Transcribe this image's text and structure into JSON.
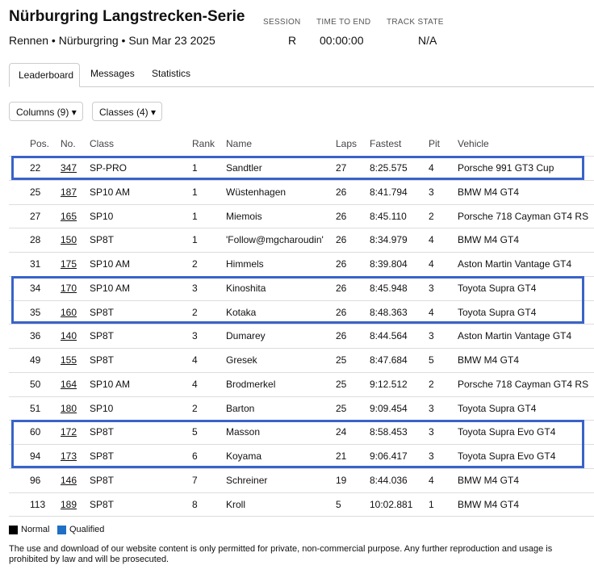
{
  "header": {
    "title": "Nürburgring Langstrecken-Serie",
    "subtitle": "Rennen • Nürburgring • Sun Mar 23 2025",
    "stats": [
      {
        "label": "SESSION",
        "value": "R"
      },
      {
        "label": "TIME TO END",
        "value": "00:00:00"
      },
      {
        "label": "TRACK STATE",
        "value": "N/A"
      }
    ]
  },
  "tabs": [
    "Leaderboard",
    "Messages",
    "Statistics"
  ],
  "filters": [
    "Columns (9)",
    "Classes (4)"
  ],
  "table": {
    "columns": [
      "Pos.",
      "No.",
      "Class",
      "Rank",
      "Name",
      "Laps",
      "Fastest",
      "Pit",
      "Vehicle"
    ],
    "rows": [
      [
        "22",
        "347",
        "SP-PRO",
        "1",
        "Sandtler",
        "27",
        "8:25.575",
        "4",
        "Porsche 991 GT3 Cup"
      ],
      [
        "25",
        "187",
        "SP10 AM",
        "1",
        "Wüstenhagen",
        "26",
        "8:41.794",
        "3",
        "BMW M4 GT4"
      ],
      [
        "27",
        "165",
        "SP10",
        "1",
        "Miemois",
        "26",
        "8:45.110",
        "2",
        "Porsche 718 Cayman GT4 RS"
      ],
      [
        "28",
        "150",
        "SP8T",
        "1",
        "'Follow@mgcharoudin'",
        "26",
        "8:34.979",
        "4",
        "BMW M4 GT4"
      ],
      [
        "31",
        "175",
        "SP10 AM",
        "2",
        "Himmels",
        "26",
        "8:39.804",
        "4",
        "Aston Martin Vantage GT4"
      ],
      [
        "34",
        "170",
        "SP10 AM",
        "3",
        "Kinoshita",
        "26",
        "8:45.948",
        "3",
        "Toyota Supra GT4"
      ],
      [
        "35",
        "160",
        "SP8T",
        "2",
        "Kotaka",
        "26",
        "8:48.363",
        "4",
        "Toyota Supra GT4"
      ],
      [
        "36",
        "140",
        "SP8T",
        "3",
        "Dumarey",
        "26",
        "8:44.564",
        "3",
        "Aston Martin Vantage GT4"
      ],
      [
        "49",
        "155",
        "SP8T",
        "4",
        "Gresek",
        "25",
        "8:47.684",
        "5",
        "BMW M4 GT4"
      ],
      [
        "50",
        "164",
        "SP10 AM",
        "4",
        "Brodmerkel",
        "25",
        "9:12.512",
        "2",
        "Porsche 718 Cayman GT4 RS"
      ],
      [
        "51",
        "180",
        "SP10",
        "2",
        "Barton",
        "25",
        "9:09.454",
        "3",
        "Toyota Supra GT4"
      ],
      [
        "60",
        "172",
        "SP8T",
        "5",
        "Masson",
        "24",
        "8:58.453",
        "3",
        "Toyota Supra Evo GT4"
      ],
      [
        "94",
        "173",
        "SP8T",
        "6",
        "Koyama",
        "21",
        "9:06.417",
        "3",
        "Toyota Supra Evo GT4"
      ],
      [
        "96",
        "146",
        "SP8T",
        "7",
        "Schreiner",
        "19",
        "8:44.036",
        "4",
        "BMW M4 GT4"
      ],
      [
        "113",
        "189",
        "SP8T",
        "8",
        "Kroll",
        "5",
        "10:02.881",
        "1",
        "BMW M4 GT4"
      ]
    ]
  },
  "legend": [
    "Normal",
    "Qualified"
  ],
  "footer": "The use and download of our website content is only permitted for private, non-commercial purpose. Any further reproduction and usage is prohibited by law and will be prosecuted."
}
